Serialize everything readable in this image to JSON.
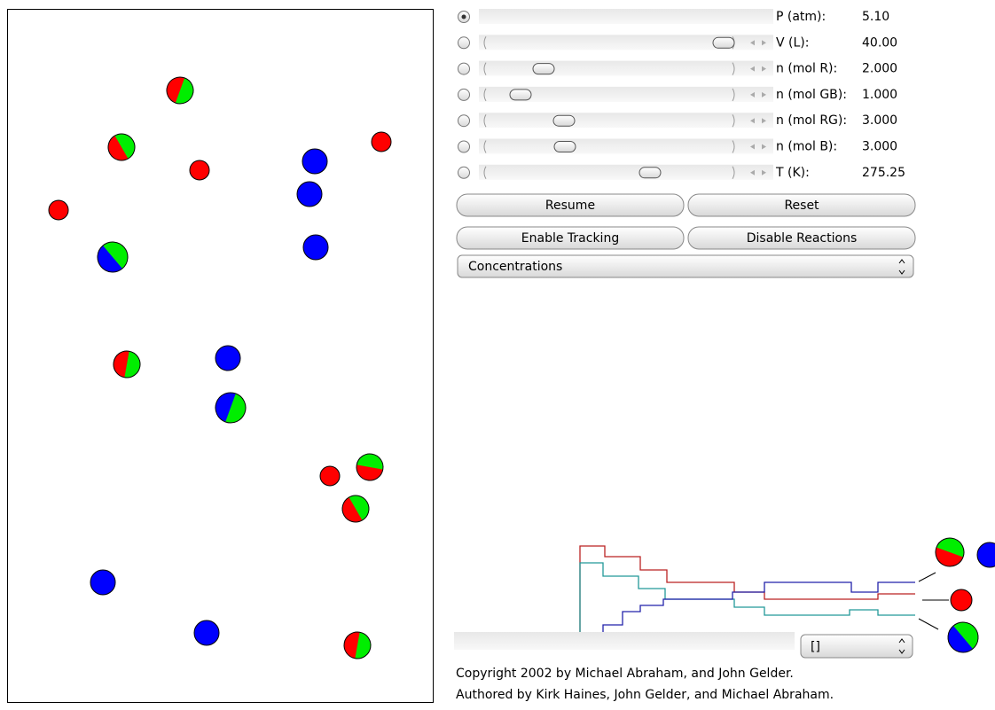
{
  "controls": [
    {
      "label": "P (atm):",
      "value": "5.10"
    },
    {
      "label": "V (L):",
      "value": "40.00"
    },
    {
      "label": "n (mol R):",
      "value": "2.000"
    },
    {
      "label": "n (mol GB):",
      "value": "1.000"
    },
    {
      "label": "n (mol RG):",
      "value": "3.000"
    },
    {
      "label": "n (mol B):",
      "value": "3.000"
    },
    {
      "label": "T (K):",
      "value": "275.25"
    }
  ],
  "buttons": [
    "Resume",
    "Reset",
    "Enable Tracking",
    "Disable Reactions"
  ],
  "view_select": "Concentrations",
  "track_select": "[]",
  "footer": [
    "Copyright 2002 by Michael Abraham, and John Gelder.",
    "Authored by Kirk Haines, John Gelder, and Michael Abraham."
  ]
}
